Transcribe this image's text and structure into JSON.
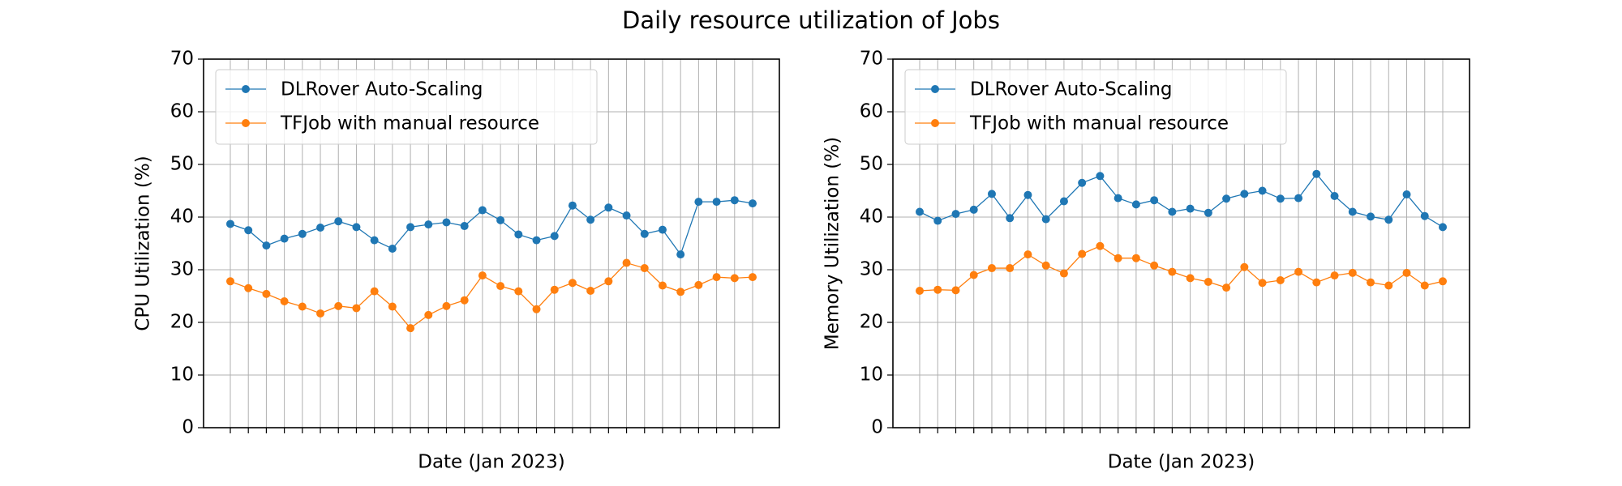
{
  "title": "Daily resource utilization of Jobs",
  "chart_data": [
    {
      "type": "line",
      "xlabel": "Date (Jan 2023)",
      "ylabel": "CPU Utilization (%)",
      "categories": [
        null,
        null,
        null,
        null,
        null,
        null,
        null,
        null,
        null,
        null,
        null,
        null,
        null,
        null,
        null,
        null,
        null,
        null,
        null,
        null,
        null,
        null,
        null,
        null,
        null,
        null,
        null,
        null,
        null,
        null
      ],
      "series": [
        {
          "name": "DLRover Auto-Scaling",
          "color": "#1f77b4",
          "values": [
            38.7,
            37.5,
            34.6,
            35.9,
            36.8,
            38.0,
            39.2,
            38.1,
            35.6,
            34.0,
            38.1,
            38.6,
            39.0,
            38.3,
            41.3,
            39.4,
            36.7,
            35.6,
            36.4,
            42.2,
            39.5,
            41.8,
            40.3,
            36.8,
            37.6,
            32.9,
            42.9,
            42.9,
            43.2,
            42.6
          ]
        },
        {
          "name": "TFJob with manual resource",
          "color": "#ff7f0e",
          "values": [
            27.8,
            26.5,
            25.4,
            24.0,
            23.0,
            21.7,
            23.1,
            22.7,
            25.9,
            23.0,
            18.9,
            21.4,
            23.1,
            24.2,
            28.9,
            26.9,
            25.9,
            22.5,
            26.2,
            27.5,
            26.0,
            27.8,
            31.3,
            30.3,
            27.0,
            25.8,
            27.1,
            28.6,
            28.4,
            28.6
          ]
        }
      ],
      "ylim": [
        0,
        70
      ],
      "yticks": [
        0,
        10,
        20,
        30,
        40,
        50,
        60,
        70
      ],
      "grid": true,
      "legend": "upper left"
    },
    {
      "type": "line",
      "xlabel": "Date (Jan 2023)",
      "ylabel": "Memory Utilization (%)",
      "categories": [
        null,
        null,
        null,
        null,
        null,
        null,
        null,
        null,
        null,
        null,
        null,
        null,
        null,
        null,
        null,
        null,
        null,
        null,
        null,
        null,
        null,
        null,
        null,
        null,
        null,
        null,
        null,
        null,
        null,
        null
      ],
      "series": [
        {
          "name": "DLRover Auto-Scaling",
          "color": "#1f77b4",
          "values": [
            41.0,
            39.3,
            40.6,
            41.4,
            44.4,
            39.8,
            44.2,
            39.6,
            43.0,
            46.5,
            47.8,
            43.6,
            42.4,
            43.2,
            41.0,
            41.6,
            40.8,
            43.5,
            44.4,
            45.0,
            43.5,
            43.6,
            48.2,
            44.0,
            41.0,
            40.1,
            39.5,
            44.3,
            40.2,
            38.1
          ]
        },
        {
          "name": "TFJob with manual resource",
          "color": "#ff7f0e",
          "values": [
            26.0,
            26.2,
            26.1,
            29.0,
            30.3,
            30.3,
            32.9,
            30.8,
            29.3,
            33.0,
            34.5,
            32.2,
            32.2,
            30.8,
            29.6,
            28.4,
            27.7,
            26.6,
            30.5,
            27.5,
            28.0,
            29.6,
            27.6,
            28.9,
            29.4,
            27.6,
            27.0,
            29.4,
            27.0,
            27.8
          ]
        }
      ],
      "ylim": [
        0,
        70
      ],
      "yticks": [
        0,
        10,
        20,
        30,
        40,
        50,
        60,
        70
      ],
      "grid": true,
      "legend": "upper left"
    }
  ]
}
